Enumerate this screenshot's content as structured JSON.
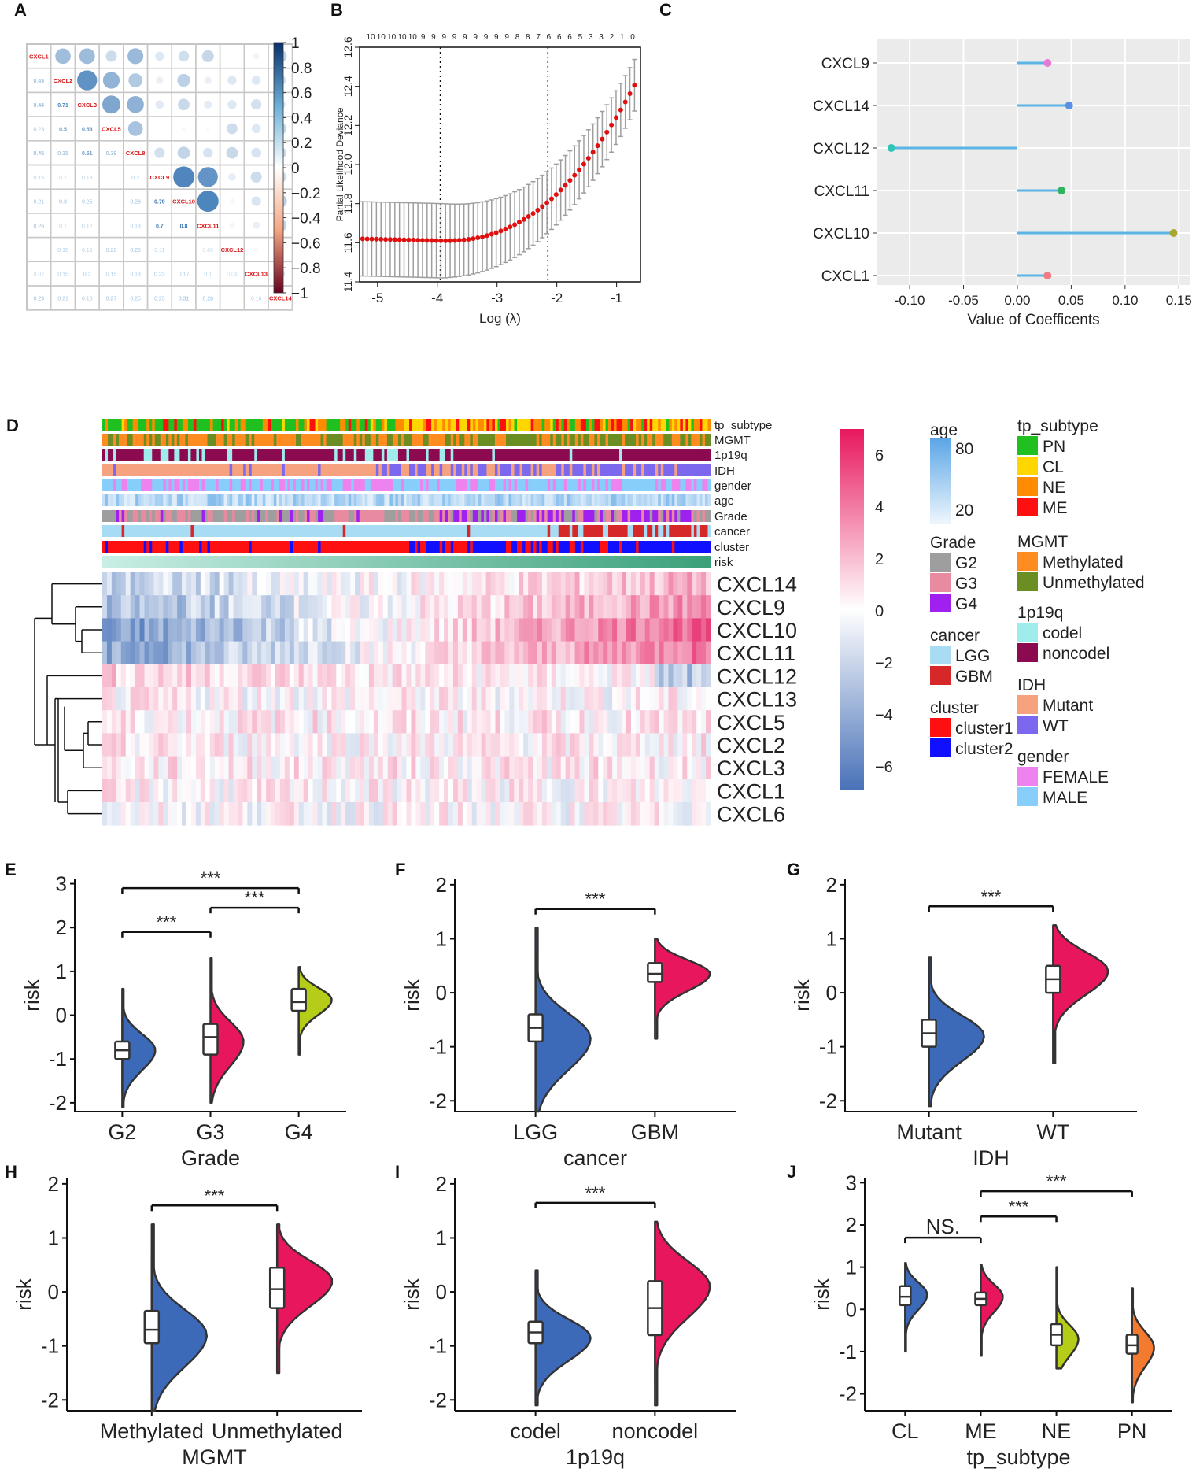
{
  "colors": {
    "blue": "#3c6ab8",
    "red": "#e8175d",
    "green": "#b5cc18",
    "orange": "#f47a30",
    "pos": "#2166ac",
    "neg": "#b2182b",
    "label_red": "#d7191c",
    "stem": "#5ab4e6"
  },
  "chart_data": [
    {
      "panel": "A",
      "type": "heatmap",
      "title": "",
      "genes": [
        "CXCL1",
        "CXCL2",
        "CXCL3",
        "CXCL5",
        "CXCL8",
        "CXCL9",
        "CXCL10",
        "CXCL11",
        "CXCL12",
        "CXCL13",
        "CXCL14"
      ],
      "lower_values": [
        [],
        [
          "0.43"
        ],
        [
          "0.44",
          "0.71"
        ],
        [
          "0.23",
          "0.5",
          "0.58"
        ],
        [
          "0.45",
          "0.35",
          "0.51",
          "0.39"
        ],
        [
          "0.15",
          "0.1",
          "0.13",
          "",
          "0.2"
        ],
        [
          "0.21",
          "0.3",
          "0.25",
          "",
          "0.28",
          "0.79"
        ],
        [
          "0.26",
          "0.1",
          "0.12",
          "",
          "0.18",
          "0.7",
          "0.8"
        ],
        [
          "",
          "0.15",
          "0.15",
          "0.22",
          "0.25",
          "0.11",
          "",
          "0.06"
        ],
        [
          "0.07",
          "0.15",
          "0.2",
          "0.15",
          "0.18",
          "0.23",
          "0.17",
          "0.1",
          "0.04"
        ],
        [
          "0.29",
          "0.21",
          "0.18",
          "0.27",
          "0.25",
          "0.25",
          "0.31",
          "0.28",
          "",
          "0.16"
        ]
      ],
      "upper_values": [
        [
          0.43,
          0.44,
          0.23,
          0.45,
          0.15,
          0.21,
          0.26,
          0,
          0.07,
          0.29
        ],
        [
          0.71,
          0.5,
          0.35,
          0.1,
          0.3,
          0.1,
          0.15,
          0.15,
          0.21
        ],
        [
          0.58,
          0.51,
          0.13,
          0.25,
          0.12,
          0.15,
          0.2,
          0.18
        ],
        [
          0.39,
          0.02,
          0.04,
          0.03,
          0.22,
          0.15,
          0.27
        ],
        [
          0.2,
          0.28,
          0.18,
          0.25,
          0.18,
          0.25
        ],
        [
          0.79,
          0.7,
          0.11,
          0.23,
          0.25
        ],
        [
          0.8,
          0.05,
          0.17,
          0.31
        ],
        [
          0.06,
          0.1,
          0.28
        ],
        [
          0.04,
          0.05
        ],
        [
          0.16
        ]
      ],
      "colorbar_ticks": [
        "1",
        "0.8",
        "0.6",
        "0.4",
        "0.2",
        "0",
        "−0.2",
        "−0.4",
        "−0.6",
        "−0.8",
        "−1"
      ]
    },
    {
      "panel": "B",
      "type": "line",
      "xlabel": "Log (λ)",
      "ylabel": "Partial Likelihood Deviance",
      "xlim": [
        -5.3,
        -0.6
      ],
      "ylim": [
        11.4,
        12.6
      ],
      "x_ticks": [
        "-5",
        "-4",
        "-3",
        "-2",
        "-1"
      ],
      "y_ticks": [
        "11.4",
        "11.6",
        "11.8",
        "12.0",
        "12.2",
        "12.4",
        "12.6"
      ],
      "top_counts": [
        "10",
        "10",
        "10",
        "10",
        "10",
        "9",
        "9",
        "9",
        "9",
        "9",
        "9",
        "9",
        "9",
        "9",
        "8",
        "8",
        "7",
        "6",
        "6",
        "6",
        "5",
        "3",
        "3",
        "2",
        "1",
        "0"
      ],
      "vlines": [
        -3.95,
        -2.15
      ],
      "n_points": 60
    },
    {
      "panel": "C",
      "type": "bar",
      "xlabel": "Value of Coefficents",
      "ylabel": "",
      "xlim": [
        -0.13,
        0.16
      ],
      "x_ticks": [
        "-0.10",
        "-0.05",
        "0.00",
        "0.05",
        "0.10",
        "0.15"
      ],
      "categories": [
        "CXCL9",
        "CXCL14",
        "CXCL12",
        "CXCL11",
        "CXCL10",
        "CXCL1"
      ],
      "values": [
        0.028,
        0.048,
        -0.117,
        0.041,
        0.145,
        0.028
      ],
      "point_colors": [
        "#e879d6",
        "#5b8fe8",
        "#2ec4b6",
        "#2fb35e",
        "#a8a832",
        "#f07b83"
      ]
    },
    {
      "panel": "D",
      "type": "heatmap",
      "annotation_tracks": [
        "tp_subtype",
        "MGMT",
        "1p19q",
        "IDH",
        "gender",
        "age",
        "Grade",
        "cancer",
        "cluster",
        "risk"
      ],
      "rows": [
        "CXCL14",
        "CXCL9",
        "CXCL10",
        "CXCL11",
        "CXCL12",
        "CXCL13",
        "CXCL5",
        "CXCL2",
        "CXCL3",
        "CXCL1",
        "CXCL6"
      ],
      "colorbar_ticks": [
        "6",
        "4",
        "2",
        "0",
        "−2",
        "−4",
        "−6"
      ],
      "legend_age": {
        "title": "age",
        "ticks": [
          "80",
          "20"
        ]
      },
      "legend_groups": [
        {
          "title": "Grade",
          "items": [
            {
              "label": "G2",
              "color": "#9e9e9e"
            },
            {
              "label": "G3",
              "color": "#e88aa0"
            },
            {
              "label": "G4",
              "color": "#a020f0"
            }
          ]
        },
        {
          "title": "cancer",
          "items": [
            {
              "label": "LGG",
              "color": "#a8dcf4"
            },
            {
              "label": "GBM",
              "color": "#d62828"
            }
          ]
        },
        {
          "title": "cluster",
          "items": [
            {
              "label": "cluster1",
              "color": "#ff1010"
            },
            {
              "label": "cluster2",
              "color": "#1010ff"
            }
          ]
        },
        {
          "title": "tp_subtype",
          "items": [
            {
              "label": "PN",
              "color": "#20c020"
            },
            {
              "label": "CL",
              "color": "#ffd700"
            },
            {
              "label": "NE",
              "color": "#ff8c00"
            },
            {
              "label": "ME",
              "color": "#ff1010"
            }
          ]
        },
        {
          "title": "MGMT",
          "items": [
            {
              "label": "Methylated",
              "color": "#ff8c20"
            },
            {
              "label": "Unmethylated",
              "color": "#6b8e23"
            }
          ]
        },
        {
          "title": "1p19q",
          "items": [
            {
              "label": "codel",
              "color": "#a0ecec"
            },
            {
              "label": "noncodel",
              "color": "#8b0a50"
            }
          ]
        },
        {
          "title": "IDH",
          "items": [
            {
              "label": "Mutant",
              "color": "#f7a27e"
            },
            {
              "label": "WT",
              "color": "#7b68ee"
            }
          ]
        },
        {
          "title": "gender",
          "items": [
            {
              "label": "FEMALE",
              "color": "#ee82ee"
            },
            {
              "label": "MALE",
              "color": "#87cefa"
            }
          ]
        }
      ]
    },
    {
      "panel": "E",
      "type": "violin",
      "xlabel": "Grade",
      "ylabel": "risk",
      "ylim": [
        -2.2,
        3.1
      ],
      "y_ticks": [
        "-2",
        "-1",
        "0",
        "1",
        "2",
        "3"
      ],
      "categories": [
        "G2",
        "G3",
        "G4"
      ],
      "groups": [
        {
          "label": "G2",
          "min": -2.1,
          "max": 0.6,
          "q1": -1.0,
          "median": -0.8,
          "q3": -0.6,
          "peak": -0.8,
          "color": "#3c6ab8"
        },
        {
          "label": "G3",
          "min": -2.0,
          "max": 1.3,
          "q1": -0.9,
          "median": -0.5,
          "q3": -0.2,
          "peak": -0.6,
          "color": "#e8175d"
        },
        {
          "label": "G4",
          "min": -0.9,
          "max": 1.1,
          "q1": 0.1,
          "median": 0.3,
          "q3": 0.6,
          "peak": 0.35,
          "color": "#b5cc18"
        }
      ],
      "brackets": [
        {
          "from": 0,
          "to": 1,
          "y": 1.9,
          "label": "***"
        },
        {
          "from": 1,
          "to": 2,
          "y": 2.45,
          "label": "***"
        },
        {
          "from": 0,
          "to": 2,
          "y": 2.9,
          "label": "***"
        }
      ]
    },
    {
      "panel": "F",
      "type": "violin",
      "xlabel": "cancer",
      "ylabel": "risk",
      "ylim": [
        -2.2,
        2.1
      ],
      "y_ticks": [
        "-2",
        "-1",
        "0",
        "1",
        "2"
      ],
      "categories": [
        "LGG",
        "GBM"
      ],
      "groups": [
        {
          "label": "LGG",
          "min": -2.2,
          "max": 1.2,
          "q1": -0.9,
          "median": -0.65,
          "q3": -0.4,
          "peak": -0.85,
          "color": "#3c6ab8"
        },
        {
          "label": "GBM",
          "min": -0.85,
          "max": 1.0,
          "q1": 0.2,
          "median": 0.35,
          "q3": 0.55,
          "peak": 0.35,
          "color": "#e8175d"
        }
      ],
      "brackets": [
        {
          "from": 0,
          "to": 1,
          "y": 1.55,
          "label": "***"
        }
      ]
    },
    {
      "panel": "G",
      "type": "violin",
      "xlabel": "IDH",
      "ylabel": "risk",
      "ylim": [
        -2.2,
        2.1
      ],
      "y_ticks": [
        "-2",
        "-1",
        "0",
        "1",
        "2"
      ],
      "categories": [
        "Mutant",
        "WT"
      ],
      "groups": [
        {
          "label": "Mutant",
          "min": -2.1,
          "max": 0.65,
          "q1": -1.0,
          "median": -0.75,
          "q3": -0.5,
          "peak": -0.8,
          "color": "#3c6ab8"
        },
        {
          "label": "WT",
          "min": -1.3,
          "max": 1.25,
          "q1": 0.0,
          "median": 0.25,
          "q3": 0.5,
          "peak": 0.4,
          "color": "#e8175d"
        }
      ],
      "brackets": [
        {
          "from": 0,
          "to": 1,
          "y": 1.6,
          "label": "***"
        }
      ]
    },
    {
      "panel": "H",
      "type": "violin",
      "xlabel": "MGMT",
      "ylabel": "risk",
      "ylim": [
        -2.2,
        2.1
      ],
      "y_ticks": [
        "-2",
        "-1",
        "0",
        "1",
        "2"
      ],
      "categories": [
        "Methylated",
        "Unmethylated"
      ],
      "groups": [
        {
          "label": "Methylated",
          "min": -2.2,
          "max": 1.25,
          "q1": -0.95,
          "median": -0.7,
          "q3": -0.35,
          "peak": -0.8,
          "color": "#3c6ab8"
        },
        {
          "label": "Unmethylated",
          "min": -1.5,
          "max": 1.25,
          "q1": -0.3,
          "median": 0.05,
          "q3": 0.45,
          "peak": 0.2,
          "color": "#e8175d"
        }
      ],
      "brackets": [
        {
          "from": 0,
          "to": 1,
          "y": 1.6,
          "label": "***"
        }
      ]
    },
    {
      "panel": "I",
      "type": "violin",
      "xlabel": "1p19q",
      "ylabel": "risk",
      "ylim": [
        -2.2,
        2.1
      ],
      "y_ticks": [
        "-2",
        "-1",
        "0",
        "1",
        "2"
      ],
      "categories": [
        "codel",
        "noncodel"
      ],
      "groups": [
        {
          "label": "codel",
          "min": -2.1,
          "max": 0.4,
          "q1": -0.95,
          "median": -0.75,
          "q3": -0.55,
          "peak": -0.85,
          "color": "#3c6ab8"
        },
        {
          "label": "noncodel",
          "min": -2.1,
          "max": 1.3,
          "q1": -0.8,
          "median": -0.3,
          "q3": 0.2,
          "peak": 0.1,
          "color": "#e8175d"
        }
      ],
      "brackets": [
        {
          "from": 0,
          "to": 1,
          "y": 1.65,
          "label": "***"
        }
      ]
    },
    {
      "panel": "J",
      "type": "violin",
      "xlabel": "tp_subtype",
      "ylabel": "risk",
      "ylim": [
        -2.4,
        3.1
      ],
      "y_ticks": [
        "-2",
        "-1",
        "0",
        "1",
        "2",
        "3"
      ],
      "categories": [
        "CL",
        "ME",
        "NE",
        "PN"
      ],
      "groups": [
        {
          "label": "CL",
          "min": -1.0,
          "max": 1.1,
          "q1": 0.1,
          "median": 0.3,
          "q3": 0.55,
          "peak": 0.35,
          "color": "#3c6ab8"
        },
        {
          "label": "ME",
          "min": -1.1,
          "max": 1.05,
          "q1": 0.1,
          "median": 0.25,
          "q3": 0.4,
          "peak": 0.3,
          "color": "#e8175d"
        },
        {
          "label": "NE",
          "min": -1.4,
          "max": 1.0,
          "q1": -0.85,
          "median": -0.6,
          "q3": -0.35,
          "peak": -0.7,
          "color": "#b5cc18"
        },
        {
          "label": "PN",
          "min": -2.2,
          "max": 0.5,
          "q1": -1.05,
          "median": -0.85,
          "q3": -0.6,
          "peak": -0.9,
          "color": "#f47a30"
        }
      ],
      "brackets": [
        {
          "from": 0,
          "to": 1,
          "y": 1.7,
          "label": "NS."
        },
        {
          "from": 1,
          "to": 2,
          "y": 2.2,
          "label": "***"
        },
        {
          "from": 1,
          "to": 3,
          "y": 2.8,
          "label": "***"
        }
      ]
    }
  ]
}
